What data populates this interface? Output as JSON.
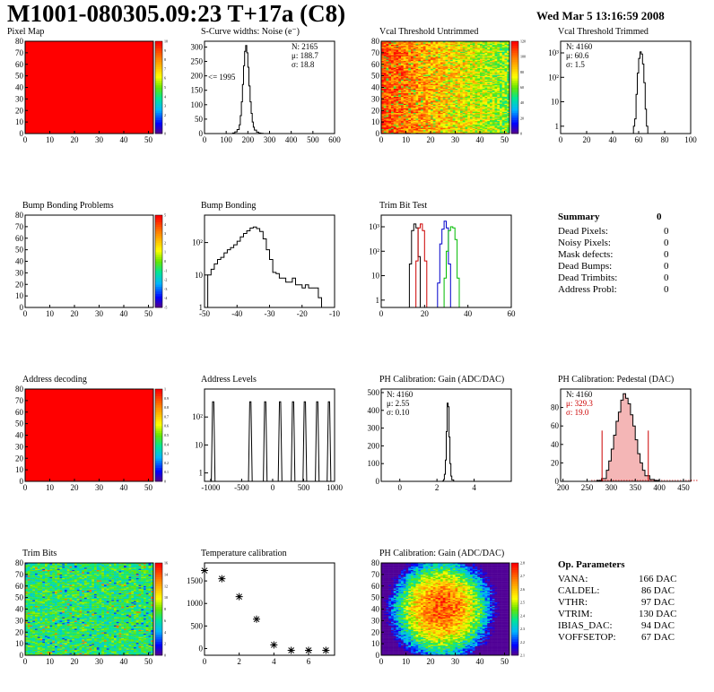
{
  "header": {
    "title": "M1001-080305.09:23 T+17a (C8)",
    "date": "Wed Mar  5 13:16:59 2008"
  },
  "chart_data": [
    {
      "id": "pixel_map",
      "type": "heatmap",
      "title": "Pixel Map",
      "xlim": [
        0,
        52
      ],
      "ylim": [
        0,
        80
      ],
      "xticks": [
        "0",
        "10",
        "20",
        "30",
        "40",
        "50"
      ],
      "yticks": [
        "0",
        "10",
        "20",
        "30",
        "40",
        "50",
        "60",
        "70",
        "80"
      ],
      "fill": "#ff0000",
      "zlim": [
        0,
        10
      ],
      "zticks": [
        "0",
        "1",
        "2",
        "3",
        "4",
        "5",
        "6",
        "7",
        "8",
        "9",
        "10"
      ],
      "palette": "root",
      "pattern": "uniform",
      "value": 10
    },
    {
      "id": "noise",
      "type": "line",
      "step": true,
      "title": "S-Curve widths: Noise (e⁻)",
      "xlim": [
        0,
        600
      ],
      "ylim": [
        0,
        320
      ],
      "xticks": [
        "0",
        "100",
        "200",
        "300",
        "400",
        "500",
        "600"
      ],
      "yticks": [
        "0",
        "50",
        "100",
        "150",
        "200",
        "250",
        "300"
      ],
      "stats": [
        "N: 2165",
        "μ: 188.7",
        "σ: 18.8"
      ],
      "annotation": "<= 1995",
      "x": [
        120,
        130,
        140,
        150,
        160,
        165,
        170,
        175,
        180,
        185,
        190,
        195,
        200,
        205,
        210,
        215,
        220,
        225,
        230,
        240,
        250,
        260,
        270
      ],
      "y": [
        0,
        2,
        6,
        14,
        30,
        62,
        110,
        170,
        235,
        285,
        305,
        280,
        230,
        165,
        110,
        70,
        40,
        22,
        12,
        5,
        2,
        1,
        0
      ]
    },
    {
      "id": "vcal_untrimmed",
      "type": "heatmap",
      "title": "Vcal Threshold Untrimmed",
      "xlim": [
        0,
        52
      ],
      "ylim": [
        0,
        80
      ],
      "xticks": [
        "0",
        "10",
        "20",
        "30",
        "40",
        "50"
      ],
      "yticks": [
        "0",
        "10",
        "20",
        "30",
        "40",
        "50",
        "60",
        "70",
        "80"
      ],
      "zticks": [
        "0",
        "20",
        "40",
        "60",
        "80",
        "100",
        "120"
      ],
      "palette": "root",
      "pattern": "gradient_x",
      "zrange": [
        0.62,
        0.95
      ]
    },
    {
      "id": "vcal_trimmed",
      "type": "line",
      "step": true,
      "title": "Vcal Threshold Trimmed",
      "logy": true,
      "xlim": [
        0,
        100
      ],
      "ylim": [
        0.5,
        3000
      ],
      "xticks": [
        "0",
        "20",
        "40",
        "60",
        "80",
        "100"
      ],
      "yticks": [
        {
          "v": 1,
          "e": "1"
        },
        {
          "v": 10,
          "e": "10"
        },
        {
          "v": 100,
          "e": "10²"
        },
        {
          "v": 1000,
          "e": "10³"
        }
      ],
      "stats": [
        "N: 4160",
        "μ: 60.6",
        "σ:  1.5"
      ],
      "x": [
        55,
        56,
        57,
        58,
        59,
        60,
        61,
        62,
        63,
        64,
        65,
        66,
        67
      ],
      "y": [
        0.5,
        1,
        2,
        20,
        150,
        600,
        1100,
        900,
        350,
        60,
        5,
        1,
        0.5
      ]
    },
    {
      "id": "bump_problems",
      "type": "heatmap",
      "title": "Bump Bonding Problems",
      "xlim": [
        0,
        52
      ],
      "ylim": [
        0,
        80
      ],
      "xticks": [
        "0",
        "10",
        "20",
        "30",
        "40",
        "50"
      ],
      "yticks": [
        "0",
        "10",
        "20",
        "30",
        "40",
        "50",
        "60",
        "70",
        "80"
      ],
      "zticks": [
        "-5",
        "-4",
        "-3",
        "-2",
        "-1",
        "0",
        "1",
        "2",
        "3",
        "4",
        "5"
      ],
      "palette": "root",
      "pattern": "empty"
    },
    {
      "id": "bump_bonding",
      "type": "line",
      "step": true,
      "title": "Bump Bonding",
      "logy": true,
      "xlim": [
        -50,
        -10
      ],
      "ylim": [
        1,
        700
      ],
      "xticks": [
        "-50",
        "-40",
        "-30",
        "-20",
        "-10"
      ],
      "yticks": [
        {
          "v": 1,
          "e": "1"
        },
        {
          "v": 10,
          "e": "10"
        },
        {
          "v": 100,
          "e": "10²"
        }
      ],
      "x": [
        -50,
        -49,
        -48,
        -47,
        -46,
        -45,
        -44,
        -43,
        -42,
        -41,
        -40,
        -39,
        -38,
        -37,
        -36,
        -35,
        -34,
        -33,
        -32,
        -31,
        -30,
        -29,
        -28,
        -27,
        -26,
        -25,
        -24,
        -23,
        -22,
        -21,
        -20,
        -19,
        -18,
        -17,
        -16,
        -15,
        -14,
        -13
      ],
      "y": [
        1,
        10,
        15,
        22,
        30,
        35,
        48,
        60,
        70,
        85,
        110,
        150,
        190,
        230,
        280,
        300,
        270,
        220,
        130,
        60,
        30,
        12,
        11,
        8,
        8,
        6,
        6,
        8,
        5,
        5,
        4,
        5,
        4,
        4,
        4,
        2,
        1,
        1
      ]
    },
    {
      "id": "trim_bit_test",
      "type": "line",
      "step": true,
      "title": "Trim Bit Test",
      "logy": true,
      "xlim": [
        0,
        60
      ],
      "ylim": [
        0.5,
        3000
      ],
      "xticks": [
        "0",
        "20",
        "40",
        "60"
      ],
      "yticks": [
        {
          "v": 1,
          "e": "1"
        },
        {
          "v": 10,
          "e": "10"
        },
        {
          "v": 100,
          "e": "10²"
        },
        {
          "v": 1000,
          "e": "10³"
        }
      ],
      "series": [
        {
          "color": "#000000",
          "x": [
            12,
            13,
            14,
            15,
            16,
            17,
            18
          ],
          "y": [
            0.5,
            30,
            700,
            1300,
            900,
            60,
            0.5
          ]
        },
        {
          "color": "#cc0000",
          "x": [
            15,
            16,
            17,
            18,
            19,
            20,
            21
          ],
          "y": [
            0.5,
            40,
            900,
            1300,
            700,
            40,
            0.5
          ]
        },
        {
          "color": "#0000cc",
          "x": [
            25,
            26,
            27,
            28,
            29,
            30,
            31,
            32
          ],
          "y": [
            0.5,
            5,
            200,
            800,
            1700,
            900,
            30,
            0.5
          ]
        },
        {
          "color": "#00bb00",
          "x": [
            28,
            29,
            30,
            31,
            32,
            33,
            34,
            35,
            36
          ],
          "y": [
            0.5,
            8,
            100,
            700,
            1000,
            900,
            300,
            8,
            0.5
          ]
        }
      ]
    },
    {
      "id": "address_decoding",
      "type": "heatmap",
      "title": "Address decoding",
      "xlim": [
        0,
        52
      ],
      "ylim": [
        0,
        80
      ],
      "xticks": [
        "0",
        "10",
        "20",
        "30",
        "40",
        "50"
      ],
      "yticks": [
        "0",
        "10",
        "20",
        "30",
        "40",
        "50",
        "60",
        "70",
        "80"
      ],
      "fill": "#ff0000",
      "zlim": [
        0,
        1
      ],
      "zticks": [
        "0",
        "0.1",
        "0.2",
        "0.3",
        "0.4",
        "0.5",
        "0.6",
        "0.7",
        "0.8",
        "0.9",
        "1"
      ],
      "palette": "root",
      "pattern": "uniform",
      "value": 1
    },
    {
      "id": "address_levels",
      "type": "line",
      "step": true,
      "title": "Address Levels",
      "logy": true,
      "xlim": [
        -1100,
        1000
      ],
      "ylim": [
        0.5,
        1000
      ],
      "xticks": [
        "-1000",
        "-500",
        "0",
        "500",
        "1000"
      ],
      "yticks": [
        {
          "v": 1,
          "e": "1"
        },
        {
          "v": 10,
          "e": "10"
        },
        {
          "v": 100,
          "e": "10²"
        }
      ],
      "peaks": [
        -960,
        -360,
        -120,
        120,
        330,
        520,
        720,
        910
      ],
      "peak_height": 350
    },
    {
      "id": "ph_gain",
      "type": "line",
      "step": true,
      "title": "PH Calibration: Gain (ADC/DAC)",
      "xlim": [
        -1,
        6
      ],
      "ylim": [
        0,
        520
      ],
      "xticks": [
        "0",
        "2",
        "4"
      ],
      "xtick_values": [
        0,
        2,
        4
      ],
      "yticks": [
        "0",
        "100",
        "200",
        "300",
        "400",
        "500"
      ],
      "stats": [
        "N: 4160",
        "μ: 2.55",
        "σ: 0.10"
      ],
      "x": [
        2.2,
        2.3,
        2.35,
        2.4,
        2.45,
        2.5,
        2.55,
        2.6,
        2.65,
        2.7,
        2.75,
        2.8,
        2.9
      ],
      "y": [
        0,
        2,
        10,
        40,
        120,
        280,
        440,
        420,
        250,
        100,
        30,
        8,
        0
      ]
    },
    {
      "id": "ph_pedestal",
      "type": "line",
      "step": true,
      "title": "PH Calibration: Pedestal (DAC)",
      "xlim": [
        195,
        465
      ],
      "ylim": [
        0,
        100
      ],
      "xticks": [
        "200",
        "250",
        "300",
        "350",
        "400",
        "450"
      ],
      "yticks": [
        "0",
        "20",
        "40",
        "60",
        "80"
      ],
      "stats": [
        "N: 4160",
        "μ: 329.3",
        "σ: 19.0"
      ],
      "stats_colors": [
        "#000000",
        "#cc0000",
        "#cc0000"
      ],
      "x": [
        260,
        270,
        280,
        290,
        295,
        300,
        305,
        310,
        315,
        320,
        325,
        330,
        335,
        340,
        345,
        350,
        355,
        360,
        365,
        370,
        380,
        390,
        400
      ],
      "y": [
        0,
        1,
        3,
        12,
        22,
        35,
        50,
        65,
        75,
        88,
        95,
        90,
        84,
        72,
        60,
        45,
        30,
        20,
        12,
        6,
        2,
        1,
        0
      ],
      "markers": [
        281,
        377
      ],
      "marker_height": 55
    },
    {
      "id": "trim_bits",
      "type": "heatmap",
      "title": "Trim Bits",
      "xlim": [
        0,
        52
      ],
      "ylim": [
        0,
        80
      ],
      "xticks": [
        "0",
        "10",
        "20",
        "30",
        "40",
        "50"
      ],
      "yticks": [
        "0",
        "10",
        "20",
        "30",
        "40",
        "50",
        "60",
        "70",
        "80"
      ],
      "zticks": [
        "0",
        "2",
        "4",
        "6",
        "8",
        "10",
        "12",
        "14",
        "16"
      ],
      "palette": "root",
      "pattern": "noise",
      "zrange": [
        0.3,
        0.55
      ]
    },
    {
      "id": "temperature",
      "type": "scatter",
      "title": "Temperature calibration",
      "xlim": [
        0,
        7.5
      ],
      "ylim": [
        -150,
        1900
      ],
      "xticks": [
        "0",
        "2",
        "4",
        "6"
      ],
      "xtick_values": [
        0,
        2,
        4,
        6
      ],
      "yticks": [
        "0",
        "500",
        "1000",
        "1500"
      ],
      "ytick_values": [
        0,
        500,
        1000,
        1500
      ],
      "x": [
        0,
        1,
        2,
        3,
        4,
        5,
        6,
        7
      ],
      "y": [
        1730,
        1550,
        1150,
        650,
        80,
        -40,
        -40,
        -40
      ]
    },
    {
      "id": "ph_gain_map",
      "type": "heatmap",
      "title": "PH Calibration: Gain (ADC/DAC)",
      "xlim": [
        0,
        52
      ],
      "ylim": [
        0,
        80
      ],
      "xticks": [
        "0",
        "10",
        "20",
        "30",
        "40",
        "50"
      ],
      "yticks": [
        "0",
        "10",
        "20",
        "30",
        "40",
        "50",
        "60",
        "70",
        "80"
      ],
      "zticks": [
        "2.1",
        "2.2",
        "2.3",
        "2.4",
        "2.5",
        "2.6",
        "2.7",
        "2.8"
      ],
      "palette": "root",
      "pattern": "gain",
      "zrange": [
        0.5,
        0.85
      ]
    }
  ],
  "summary": {
    "title": "Summary",
    "value": "0",
    "rows": [
      {
        "label": "Dead Pixels:",
        "value": "0"
      },
      {
        "label": "Noisy Pixels:",
        "value": "0"
      },
      {
        "label": "Mask defects:",
        "value": "0"
      },
      {
        "label": "Dead Bumps:",
        "value": "0"
      },
      {
        "label": "Dead Trimbits:",
        "value": "0"
      },
      {
        "label": "Address Probl:",
        "value": "0"
      }
    ]
  },
  "op_params": {
    "title": "Op. Parameters",
    "rows": [
      {
        "label": "VANA:",
        "value": "166 DAC"
      },
      {
        "label": "CALDEL:",
        "value": "86 DAC"
      },
      {
        "label": "VTHR:",
        "value": "97 DAC"
      },
      {
        "label": "VTRIM:",
        "value": "130 DAC"
      },
      {
        "label": "IBIAS_DAC:",
        "value": "94 DAC"
      },
      {
        "label": "VOFFSETOP:",
        "value": "67 DAC"
      }
    ]
  }
}
